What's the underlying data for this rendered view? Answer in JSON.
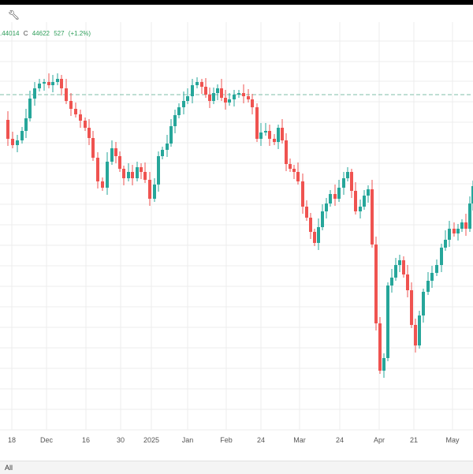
{
  "toolbar": {
    "tool_icon": "wrench-icon"
  },
  "ohlc": {
    "partial_low": ".44014",
    "close_label": "C",
    "close": "44622",
    "change": "527",
    "change_pct": "(+1.2%)"
  },
  "range": {
    "selected": "All"
  },
  "colors": {
    "up": "#26a69a",
    "down": "#ef5350",
    "reference_line": "#7fbfa8",
    "grid": "#ececec"
  },
  "chart_data": {
    "type": "candlestick",
    "x_tick_labels": [
      "18",
      "Dec",
      "16",
      "30",
      "2025",
      "Jan",
      "Feb",
      "24",
      "Mar",
      "24",
      "Apr",
      "21",
      "May"
    ],
    "grid": true,
    "reference_line": {
      "style": "dashed"
    }
  }
}
